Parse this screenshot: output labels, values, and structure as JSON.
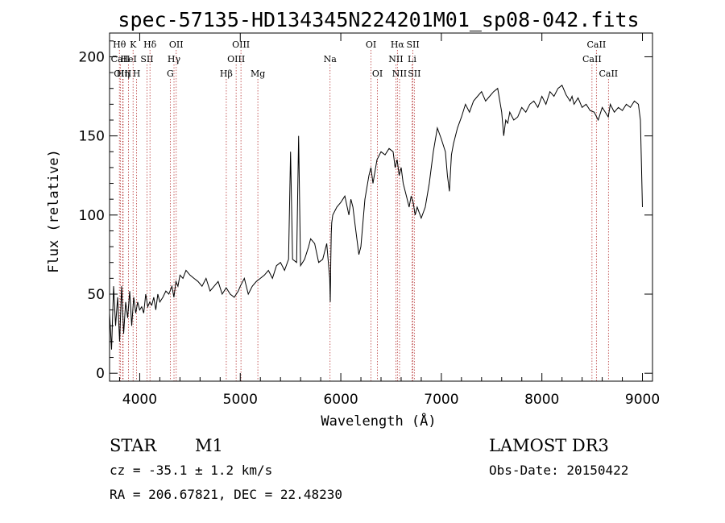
{
  "chart_data": {
    "type": "line",
    "title": "spec-57135-HD134345N224201M01_sp08-042.fits",
    "xlabel": "Wavelength (Å)",
    "ylabel": "Flux (relative)",
    "xlim": [
      3700,
      9100
    ],
    "ylim": [
      -5,
      215
    ],
    "xticks": [
      4000,
      5000,
      6000,
      7000,
      8000,
      9000
    ],
    "yticks": [
      0,
      50,
      100,
      150,
      200
    ],
    "series": [
      {
        "name": "spectrum",
        "x": [
          3700,
          3720,
          3740,
          3760,
          3780,
          3800,
          3820,
          3840,
          3860,
          3880,
          3900,
          3920,
          3940,
          3960,
          3980,
          4000,
          4020,
          4040,
          4060,
          4080,
          4100,
          4120,
          4140,
          4160,
          4180,
          4200,
          4230,
          4260,
          4290,
          4320,
          4340,
          4360,
          4380,
          4400,
          4430,
          4460,
          4500,
          4540,
          4580,
          4620,
          4660,
          4700,
          4740,
          4780,
          4820,
          4860,
          4900,
          4940,
          4980,
          5000,
          5040,
          5080,
          5120,
          5160,
          5200,
          5240,
          5280,
          5320,
          5360,
          5400,
          5440,
          5480,
          5500,
          5520,
          5560,
          5580,
          5600,
          5640,
          5680,
          5700,
          5740,
          5780,
          5820,
          5860,
          5890,
          5895,
          5900,
          5905,
          5910,
          5920,
          5960,
          6000,
          6020,
          6040,
          6080,
          6100,
          6120,
          6140,
          6160,
          6180,
          6200,
          6240,
          6280,
          6300,
          6320,
          6360,
          6400,
          6440,
          6480,
          6520,
          6540,
          6560,
          6580,
          6600,
          6620,
          6640,
          6660,
          6680,
          6700,
          6720,
          6740,
          6760,
          6800,
          6840,
          6880,
          6920,
          6960,
          7000,
          7040,
          7060,
          7080,
          7100,
          7120,
          7140,
          7160,
          7200,
          7240,
          7280,
          7320,
          7360,
          7400,
          7440,
          7480,
          7520,
          7560,
          7600,
          7620,
          7640,
          7660,
          7680,
          7720,
          7760,
          7800,
          7840,
          7880,
          7920,
          7960,
          8000,
          8040,
          8080,
          8120,
          8160,
          8200,
          8240,
          8280,
          8300,
          8320,
          8360,
          8400,
          8440,
          8480,
          8520,
          8560,
          8600,
          8640,
          8660,
          8680,
          8720,
          8760,
          8800,
          8840,
          8880,
          8920,
          8960,
          8980,
          9000
        ],
        "values": [
          38,
          15,
          55,
          30,
          48,
          20,
          55,
          25,
          45,
          35,
          52,
          30,
          48,
          38,
          45,
          40,
          42,
          38,
          50,
          42,
          45,
          43,
          48,
          40,
          50,
          45,
          48,
          52,
          50,
          55,
          48,
          58,
          55,
          62,
          60,
          65,
          62,
          60,
          58,
          55,
          60,
          52,
          55,
          58,
          50,
          54,
          50,
          48,
          52,
          55,
          60,
          50,
          55,
          58,
          60,
          62,
          65,
          60,
          68,
          70,
          65,
          72,
          140,
          72,
          70,
          150,
          68,
          72,
          80,
          85,
          82,
          70,
          72,
          82,
          60,
          45,
          70,
          88,
          95,
          100,
          105,
          108,
          110,
          112,
          100,
          110,
          105,
          95,
          85,
          75,
          80,
          110,
          125,
          130,
          120,
          135,
          140,
          138,
          142,
          140,
          130,
          135,
          125,
          130,
          120,
          115,
          110,
          105,
          112,
          108,
          100,
          105,
          98,
          105,
          120,
          140,
          155,
          148,
          140,
          125,
          115,
          138,
          145,
          150,
          155,
          162,
          170,
          165,
          172,
          175,
          178,
          172,
          175,
          178,
          180,
          165,
          150,
          160,
          158,
          165,
          160,
          162,
          168,
          165,
          170,
          172,
          168,
          175,
          170,
          178,
          175,
          180,
          182,
          176,
          172,
          175,
          170,
          174,
          168,
          170,
          166,
          165,
          160,
          168,
          164,
          162,
          170,
          165,
          168,
          166,
          170,
          168,
          172,
          170,
          160,
          105
        ]
      }
    ],
    "spectral_lines": [
      {
        "label": "Hθ",
        "x": 3798,
        "row": 0,
        "color": "#b83a3a"
      },
      {
        "label": "CaII",
        "x": 3808,
        "row": 1,
        "color": "#b83a3a"
      },
      {
        "label": "OIII",
        "x": 3830,
        "row": 2,
        "color": "#b83a3a"
      },
      {
        "label": "K",
        "x": 3934,
        "row": 0,
        "color": "#b83a3a"
      },
      {
        "label": "HeI",
        "x": 3889,
        "row": 1,
        "color": "#b83a3a"
      },
      {
        "label": "Hη",
        "x": 3835,
        "row": 2,
        "color": "#b83a3a"
      },
      {
        "label": "H",
        "x": 3969,
        "row": 2,
        "color": "#b83a3a"
      },
      {
        "label": "Hδ",
        "x": 4102,
        "row": 0,
        "color": "#b83a3a"
      },
      {
        "label": "SII",
        "x": 4072,
        "row": 1,
        "color": "#b83a3a"
      },
      {
        "label": "OII",
        "x": 4363,
        "row": 0,
        "color": "#b83a3a"
      },
      {
        "label": "Hγ",
        "x": 4341,
        "row": 1,
        "color": "#b83a3a"
      },
      {
        "label": "G",
        "x": 4304,
        "row": 2,
        "color": "#b83a3a"
      },
      {
        "label": "OIII",
        "x": 5007,
        "row": 0,
        "color": "#b83a3a"
      },
      {
        "label": "OIII",
        "x": 4959,
        "row": 1,
        "color": "#b83a3a"
      },
      {
        "label": "Hβ",
        "x": 4861,
        "row": 2,
        "color": "#b83a3a"
      },
      {
        "label": "Mg",
        "x": 5175,
        "row": 2,
        "color": "#b83a3a"
      },
      {
        "label": "Na",
        "x": 5893,
        "row": 1,
        "color": "#b83a3a"
      },
      {
        "label": "OI",
        "x": 6300,
        "row": 0,
        "color": "#b83a3a"
      },
      {
        "label": "OI",
        "x": 6364,
        "row": 2,
        "color": "#b83a3a"
      },
      {
        "label": "Hα",
        "x": 6563,
        "row": 0,
        "color": "#b83a3a"
      },
      {
        "label": "NII",
        "x": 6548,
        "row": 1,
        "color": "#b83a3a"
      },
      {
        "label": "NII",
        "x": 6584,
        "row": 2,
        "color": "#b83a3a"
      },
      {
        "label": "SII",
        "x": 6717,
        "row": 0,
        "color": "#b83a3a"
      },
      {
        "label": "Li",
        "x": 6708,
        "row": 1,
        "color": "#b83a3a"
      },
      {
        "label": "SII",
        "x": 6731,
        "row": 2,
        "color": "#b83a3a"
      },
      {
        "label": "CaII",
        "x": 8542,
        "row": 0,
        "color": "#b83a3a"
      },
      {
        "label": "CaII",
        "x": 8498,
        "row": 1,
        "color": "#b83a3a"
      },
      {
        "label": "CaII",
        "x": 8662,
        "row": 2,
        "color": "#b83a3a"
      }
    ]
  },
  "info": {
    "object_class": "STAR",
    "subclass": "M1",
    "survey": "LAMOST DR3",
    "redshift": "cz = -35.1 ± 1.2 km/s",
    "obs_date": "Obs-Date: 20150422",
    "coords": "RA = 206.67821, DEC =  22.48230"
  },
  "colors": {
    "line": "#000000",
    "marker": "#b83a3a"
  }
}
